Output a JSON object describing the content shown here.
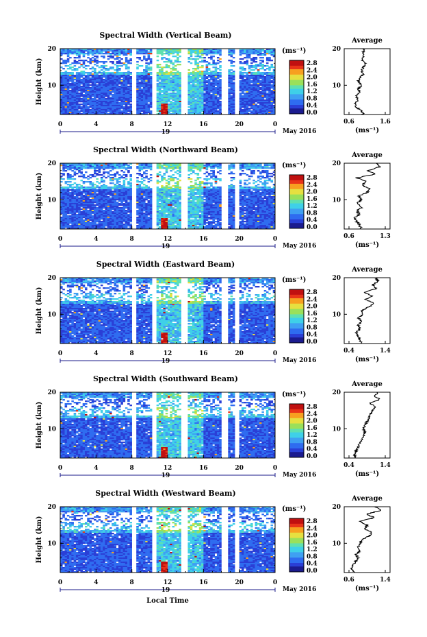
{
  "figure": {
    "xlabel": "Local Time",
    "colorbar_unit": "(ms⁻¹)",
    "colorbar_ticks": [
      "2.8",
      "2.4",
      "2.0",
      "1.6",
      "1.2",
      "0.8",
      "0.4",
      "0.0"
    ],
    "colormap": [
      "#1b1b8f",
      "#2a3fd6",
      "#2f6cf0",
      "#3fa0f2",
      "#3fd0e8",
      "#5fe0b0",
      "#9ae05a",
      "#e6e040",
      "#f7a020",
      "#e83418",
      "#c01010"
    ],
    "avg_title": "Average",
    "avg_xlabel": "(ms⁻¹)",
    "date_label": "May 2016",
    "day_label": "19",
    "x_ticks": [
      "0",
      "4",
      "8",
      "12",
      "16",
      "20",
      "0"
    ],
    "y_ticks": [
      "20",
      "10"
    ],
    "ylabel": "Height (km)"
  },
  "chart_data": [
    {
      "type": "heatmap",
      "title": "Spectral Width (Vertical Beam)",
      "xlim": [
        0,
        24
      ],
      "ylim": [
        2,
        20
      ],
      "colorbar_range": [
        0.0,
        3.0
      ],
      "avg_xticks": [
        "0.6",
        "1.6"
      ],
      "average_profile": {
        "height_km": [
          2,
          3,
          4,
          5,
          6,
          7,
          8,
          9,
          10,
          11,
          12,
          13,
          14,
          15,
          16,
          17,
          18,
          19,
          20
        ],
        "value_ms": [
          1.0,
          0.95,
          0.8,
          0.75,
          0.85,
          0.8,
          0.9,
          0.85,
          0.95,
          0.85,
          0.9,
          1.0,
          0.95,
          1.0,
          1.05,
          0.95,
          1.0,
          1.0,
          1.0
        ]
      }
    },
    {
      "type": "heatmap",
      "title": "Spectral Width (Northward Beam)",
      "xlim": [
        0,
        24
      ],
      "ylim": [
        2,
        20
      ],
      "colorbar_range": [
        0.0,
        3.0
      ],
      "avg_xticks": [
        "0.6",
        "1.3"
      ],
      "average_profile": {
        "height_km": [
          2,
          3,
          4,
          5,
          6,
          7,
          8,
          9,
          10,
          11,
          12,
          13,
          14,
          15,
          16,
          17,
          18,
          19,
          20
        ],
        "value_ms": [
          0.85,
          0.8,
          0.75,
          0.7,
          0.8,
          0.75,
          0.85,
          0.75,
          0.85,
          0.8,
          0.95,
          1.0,
          0.85,
          0.95,
          0.75,
          1.1,
          0.95,
          1.2,
          1.15
        ]
      }
    },
    {
      "type": "heatmap",
      "title": "Spectral Width (Eastward Beam)",
      "xlim": [
        0,
        24
      ],
      "ylim": [
        2,
        20
      ],
      "colorbar_range": [
        0.0,
        3.0
      ],
      "avg_xticks": [
        "0.4",
        "1.4"
      ],
      "average_profile": {
        "height_km": [
          2,
          3,
          4,
          5,
          6,
          7,
          8,
          9,
          10,
          11,
          12,
          13,
          14,
          15,
          16,
          17,
          18,
          19,
          20
        ],
        "value_ms": [
          0.75,
          0.7,
          0.65,
          0.6,
          0.7,
          0.65,
          0.75,
          0.65,
          0.8,
          0.75,
          0.95,
          1.1,
          0.85,
          1.05,
          0.8,
          1.15,
          1.05,
          1.2,
          1.15
        ]
      }
    },
    {
      "type": "heatmap",
      "title": "Spectral Width (Southward Beam)",
      "xlim": [
        0,
        24
      ],
      "ylim": [
        2,
        20
      ],
      "colorbar_range": [
        0.0,
        3.0
      ],
      "avg_xticks": [
        "0.4",
        "1.4"
      ],
      "average_profile": {
        "height_km": [
          2,
          3,
          4,
          5,
          6,
          7,
          8,
          9,
          10,
          11,
          12,
          13,
          14,
          15,
          16,
          17,
          18,
          19,
          20
        ],
        "value_ms": [
          0.6,
          0.55,
          0.6,
          0.65,
          0.7,
          0.75,
          0.8,
          0.85,
          0.8,
          0.85,
          0.9,
          0.95,
          1.0,
          1.05,
          1.15,
          0.95,
          1.25,
          1.1,
          1.2
        ]
      }
    },
    {
      "type": "heatmap",
      "title": "Spectral Width (Westward Beam)",
      "xlim": [
        0,
        24
      ],
      "ylim": [
        2,
        20
      ],
      "colorbar_range": [
        0.0,
        3.0
      ],
      "avg_xticks": [
        "0.6",
        "1.4"
      ],
      "average_profile": {
        "height_km": [
          2,
          3,
          4,
          5,
          6,
          7,
          8,
          9,
          10,
          11,
          12,
          13,
          14,
          15,
          16,
          17,
          18,
          19,
          20
        ],
        "value_ms": [
          0.7,
          0.65,
          0.7,
          0.75,
          0.8,
          0.75,
          0.85,
          0.8,
          0.85,
          0.9,
          1.05,
          1.1,
          0.95,
          1.0,
          0.85,
          1.15,
          1.0,
          1.3,
          1.2
        ]
      }
    }
  ]
}
